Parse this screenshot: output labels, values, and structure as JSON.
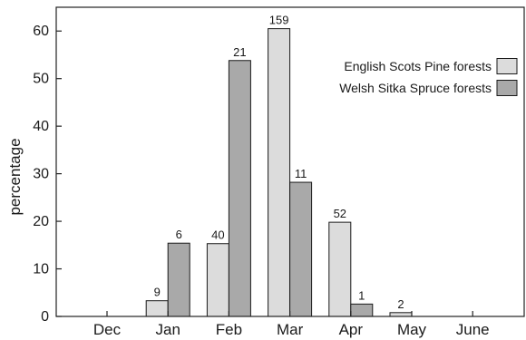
{
  "chart_data": {
    "type": "bar",
    "title": "",
    "xlabel": "",
    "ylabel": "percentage",
    "categories": [
      "Dec",
      "Jan",
      "Feb",
      "Mar",
      "Apr",
      "May",
      "June"
    ],
    "ylim": [
      0,
      65
    ],
    "yticks": [
      0,
      10,
      20,
      30,
      40,
      50,
      60
    ],
    "grid": false,
    "legend_position": "top-right",
    "series": [
      {
        "name": "English Scots Pine forests",
        "color": "#dcdcdc",
        "values": [
          0,
          3.3,
          15.3,
          60.5,
          19.8,
          0.8,
          0
        ],
        "labels": [
          "",
          "9",
          "40",
          "159",
          "52",
          "2",
          ""
        ]
      },
      {
        "name": "Welsh Sitka Spruce forests",
        "color": "#a9a9a9",
        "values": [
          0,
          15.4,
          53.8,
          28.2,
          2.6,
          0,
          0
        ],
        "labels": [
          "",
          "6",
          "21",
          "11",
          "1",
          "",
          ""
        ]
      }
    ]
  }
}
